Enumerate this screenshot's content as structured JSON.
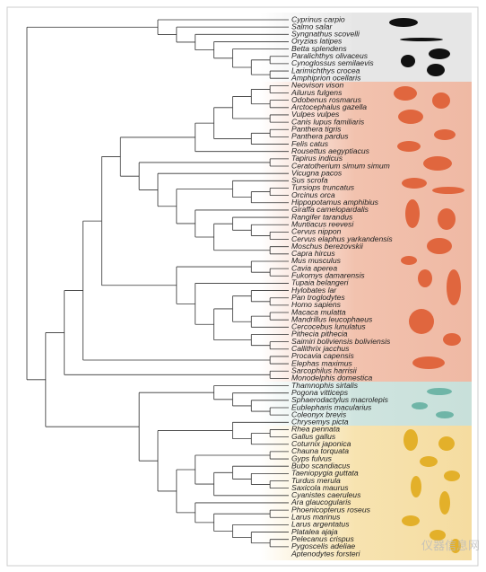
{
  "species": [
    "Cyprinus carpio",
    "Salmo salar",
    "Syngnathus scovelli",
    "Oryzias latipes",
    "Betta splendens",
    "Paralichthys olivaceus",
    "Cynoglossus semilaevis",
    "Larimichthys crocea",
    "Amphiprion ocellaris",
    "Neovison vison",
    "Ailurus fulgens",
    "Odobenus rosmarus",
    "Arctocephalus gazella",
    "Vulpes vulpes",
    "Canis lupus familiaris",
    "Panthera tigris",
    "Panthera pardus",
    "Felis catus",
    "Rousettus aegyptiacus",
    "Tapirus indicus",
    "Ceratotherium simum simum",
    "Vicugna pacos",
    "Sus scrofa",
    "Tursiops truncatus",
    "Orcinus orca",
    "Hippopotamus amphibius",
    "Giraffa camelopardalis",
    "Rangifer tarandus",
    "Muntiacus reevesi",
    "Cervus nippon",
    "Cervus elaphus yarkandensis",
    "Moschus berezovskii",
    "Capra hircus",
    "Mus musculus",
    "Cavia aperea",
    "Fukomys damarensis",
    "Tupaia belangeri",
    "Hylobates lar",
    "Pan troglodytes",
    "Homo sapiens",
    "Macaca mulatta",
    "Mandrillus leucophaeus",
    "Cercocebus lunulatus",
    "Pithecia pithecia",
    "Saimiri boliviensis boliviensis",
    "Callithrix jacchus",
    "Procavia capensis",
    "Elephas maximus",
    "Sarcophilus harrisii",
    "Monodelphis domestica",
    "Thamnophis sirtalis",
    "Pogona vitticeps",
    "Sphaerodactylus macrolepis",
    "Eublepharis macularius",
    "Coleonyx brevis",
    "Chrysemys picta",
    "Rhea pennata",
    "Gallus gallus",
    "Coturnix japonica",
    "Chauna torquata",
    "Gyps fulvus",
    "Bubo scandiacus",
    "Taeniopygia guttata",
    "Turdus merula",
    "Saxicola maurus",
    "Cyanistes caeruleus",
    "Ara glaucogularis",
    "Phoenicopterus roseus",
    "Larus marinus",
    "Larus argentatus",
    "Platalea ajaja",
    "Pelecanus crispus",
    "Pygoscelis adeliae",
    "Aptenodytes forsteri"
  ],
  "watermark": "仪器信息网"
}
